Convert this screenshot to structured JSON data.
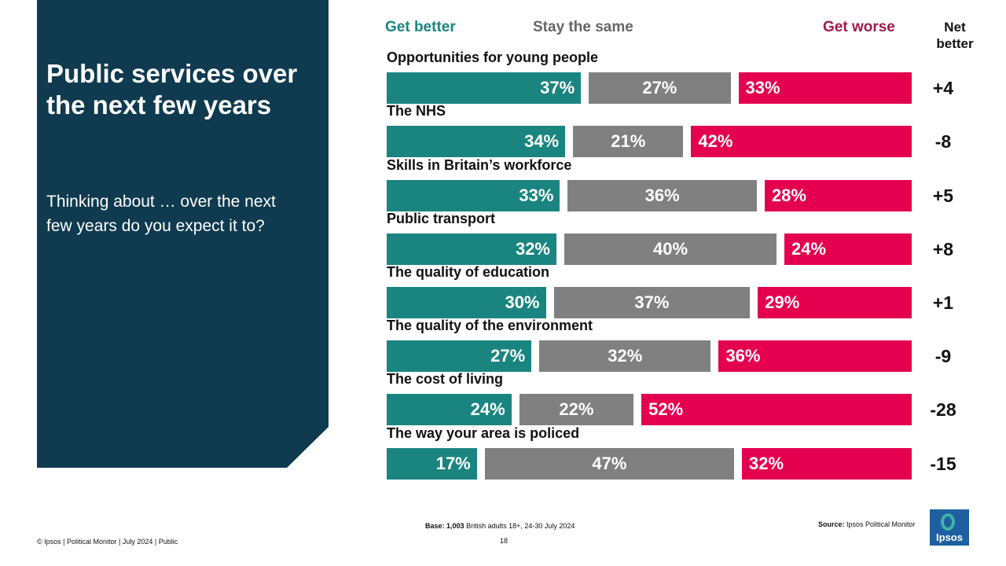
{
  "panel": {
    "title": "Public services over the next few years",
    "subtitle": "Thinking about … over the next few years do you expect it to?"
  },
  "legend": {
    "better": "Get better",
    "same": "Stay the same",
    "worse": "Get worse",
    "net_line1": "Net",
    "net_line2": "better"
  },
  "colors": {
    "panel": "#0f3a4f",
    "better": "#1a8580",
    "same": "#808080",
    "worse": "#e4004f"
  },
  "chart_data": {
    "type": "bar",
    "orientation": "horizontal",
    "stacked": true,
    "title": "Public services over the next few years",
    "categories": [
      "Opportunities  for young people",
      "The NHS",
      "Skills in Britain’s workforce",
      "Public transport",
      "The quality of education",
      "The quality of the environment",
      "The cost of living",
      "The way your area is policed"
    ],
    "series": [
      {
        "name": "Get better",
        "values": [
          37,
          34,
          33,
          32,
          30,
          27,
          24,
          17
        ]
      },
      {
        "name": "Stay the same",
        "values": [
          27,
          21,
          36,
          40,
          37,
          32,
          22,
          47
        ]
      },
      {
        "name": "Get worse",
        "values": [
          33,
          42,
          28,
          24,
          29,
          36,
          52,
          32
        ]
      }
    ],
    "net_better": [
      "+4",
      "-8",
      "+5",
      "+8",
      "+1",
      "-9",
      "-28",
      "-15"
    ],
    "value_suffix": "%",
    "legend_position": "top"
  },
  "footer": {
    "base_label": "Base:",
    "base_value": "1,003",
    "base_rest": " British adults 18+, 24-30 July 2024",
    "page_number": "18",
    "copyright": "© Ipsos | Political Monitor | July 2024 | Public",
    "source_label": "Source:",
    "source_value": " Ipsos Political Monitor",
    "logo_text": "Ipsos"
  }
}
